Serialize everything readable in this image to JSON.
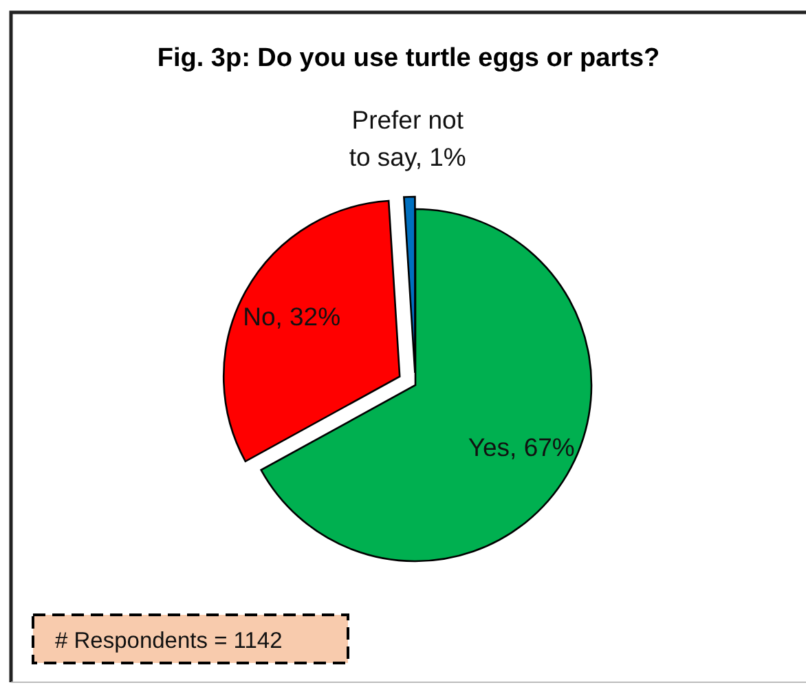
{
  "chart_data": {
    "type": "pie",
    "title": "Fig. 3p: Do you use turtle eggs or parts?",
    "categories": [
      "Yes",
      "No",
      "Prefer not to say"
    ],
    "values": [
      67,
      32,
      1
    ],
    "value_labels": [
      "67%",
      "32%",
      "1%"
    ],
    "colors": [
      "#00b050",
      "#ff0000",
      "#0070c0"
    ],
    "annotations": [
      "# Respondents = 1142"
    ]
  }
}
